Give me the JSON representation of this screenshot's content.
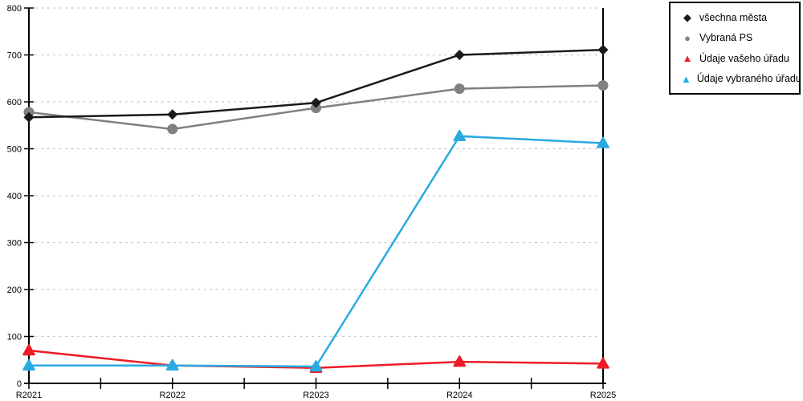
{
  "chart_data": {
    "type": "line",
    "title": "",
    "xlabel": "",
    "ylabel": "",
    "categories": [
      "R2021",
      "R2022",
      "R2023",
      "R2024",
      "R2025"
    ],
    "series": [
      {
        "name": "všechna města",
        "color": "#1a1a1a",
        "marker": "diamond",
        "values": [
          567,
          573,
          598,
          700,
          711
        ]
      },
      {
        "name": "Vybraná PS",
        "color": "#808080",
        "marker": "circle",
        "values": [
          578,
          542,
          587,
          628,
          635
        ]
      },
      {
        "name": "Údaje vašeho úřadu",
        "color": "#ee1c24",
        "marker": "triangle",
        "values": [
          70,
          38,
          33,
          46,
          42
        ]
      },
      {
        "name": "Údaje vybraného úřadu",
        "color": "#29abe2",
        "marker": "triangle",
        "values": [
          38,
          38,
          36,
          527,
          512
        ]
      }
    ],
    "ylim": [
      0,
      800
    ],
    "yticks": [
      0,
      100,
      200,
      300,
      400,
      500,
      600,
      700,
      800
    ],
    "grid": "horizontal-dashed",
    "grid_color": "#c9c9c9",
    "axis_color": "#000000",
    "legend_position": "top-right",
    "legend_border_color": "#000000",
    "marker_glyphs": {
      "diamond": "◆",
      "circle": "●",
      "triangle": "▲"
    }
  }
}
